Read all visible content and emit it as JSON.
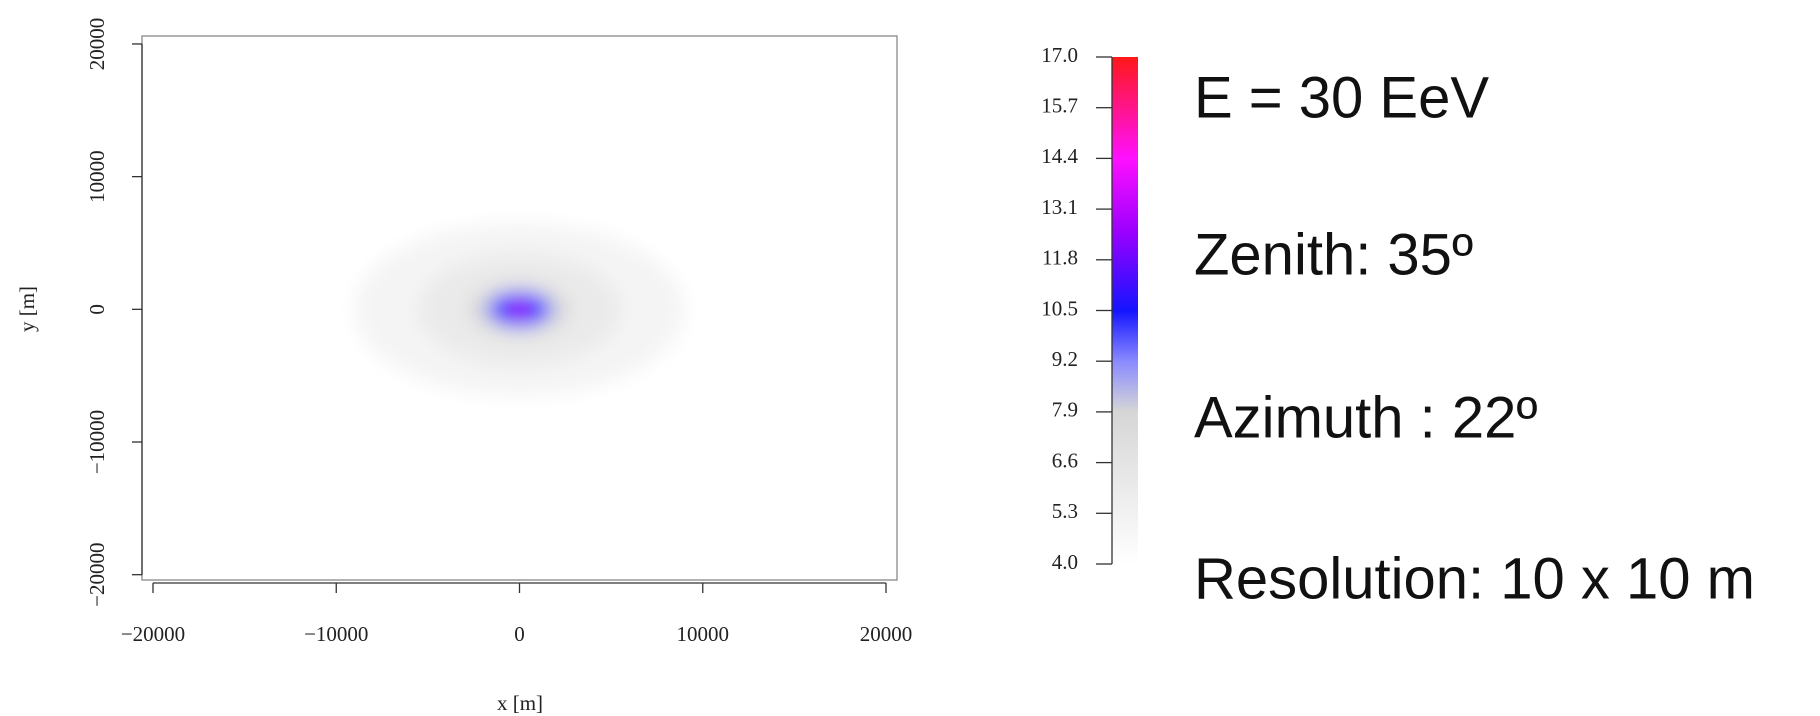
{
  "chart_data": {
    "type": "heatmap",
    "xlabel": "x [m]",
    "ylabel": "y [m]",
    "xlim": [
      -20600,
      20600
    ],
    "ylim": [
      -20400,
      20600
    ],
    "xticks": [
      {
        "value": -20000,
        "label": "−20000"
      },
      {
        "value": -10000,
        "label": "−10000"
      },
      0,
      10000,
      20000
    ],
    "yticks": [
      {
        "value": -20000,
        "label": "−20000"
      },
      {
        "value": -10000,
        "label": "−10000"
      },
      0,
      10000,
      20000
    ],
    "center": [
      0,
      0
    ],
    "contours": [
      {
        "level": 5.0,
        "rx": 9000,
        "ry": 6500
      },
      {
        "level": 6.0,
        "rx": 5500,
        "ry": 4200
      },
      {
        "level": 7.5,
        "rx": 2800,
        "ry": 2000
      },
      {
        "level": 9.0,
        "rx": 1900,
        "ry": 1400
      },
      {
        "level": 10.5,
        "rx": 1400,
        "ry": 1050
      },
      {
        "level": 12.0,
        "rx": 800,
        "ry": 600
      },
      {
        "level": 14.0,
        "rx": 350,
        "ry": 300
      }
    ],
    "colorbar": {
      "lim": [
        4,
        17
      ],
      "ticks": [
        {
          "value": 4,
          "label": "4.0"
        },
        5.3,
        6.6,
        7.9,
        9.2,
        10.5,
        11.8,
        13.1,
        14.4,
        15.7,
        {
          "value": 17,
          "label": "17.0"
        }
      ],
      "stops": [
        {
          "value": 4,
          "color": "#ffffff"
        },
        {
          "value": 7.9,
          "color": "#d6d6d6"
        },
        {
          "value": 9.2,
          "color": "#8a8aff"
        },
        {
          "value": 10.5,
          "color": "#1414ff"
        },
        {
          "value": 12.5,
          "color": "#9a00ff"
        },
        {
          "value": 14.4,
          "color": "#ff10ff"
        },
        {
          "value": 17,
          "color": "#ff1818"
        }
      ]
    },
    "annotations": [
      "E = 30 EeV",
      "Zenith: 35º",
      "Azimuth : 22º",
      "Resolution: 10 x 10 m"
    ]
  }
}
